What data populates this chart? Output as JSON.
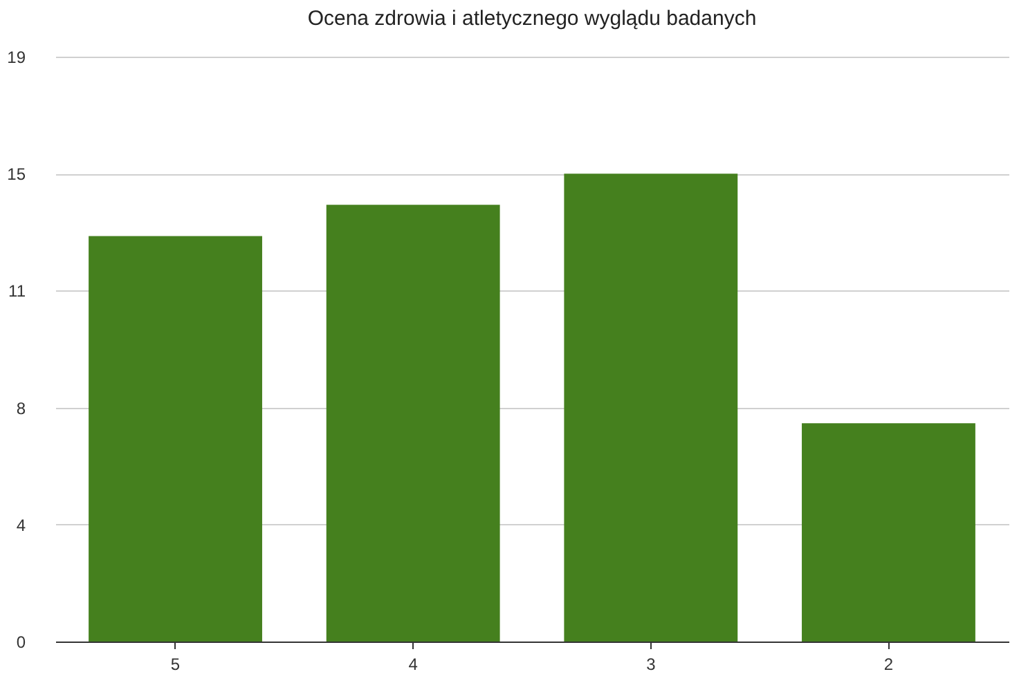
{
  "chart_data": {
    "type": "bar",
    "title": "Ocena zdrowia i atletycznego wyglądu badanych",
    "categories": [
      "5",
      "4",
      "3",
      "2"
    ],
    "values": [
      13,
      14,
      15,
      7
    ],
    "color": "#45801e",
    "ylim": [
      0,
      18.75
    ],
    "yticks": [
      0,
      {
        "value": 3.75,
        "label": "4"
      },
      {
        "value": 7.5,
        "label": "8"
      },
      {
        "value": 11.25,
        "label": "11"
      },
      15,
      {
        "value": 18.75,
        "label": "19"
      }
    ],
    "grid": "y"
  }
}
